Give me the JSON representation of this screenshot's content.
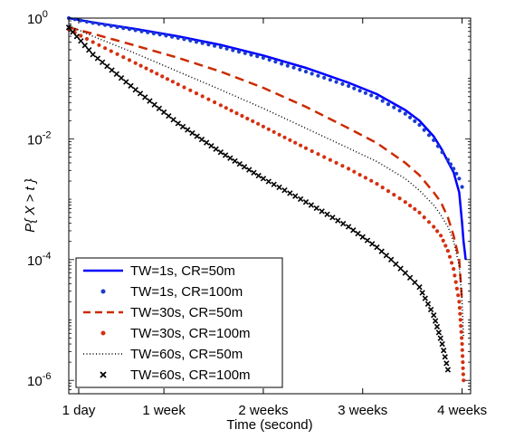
{
  "chart_data": {
    "type": "line",
    "title": "",
    "xlabel": "Time (second)",
    "ylabel": "P{ X > t }",
    "x_scale": "linear",
    "y_scale": "log",
    "x_tick_labels": [
      "1 day",
      "1 week",
      "2 weeks",
      "3 weeks",
      "4 weeks"
    ],
    "x_tick_values_days": [
      1,
      7,
      14,
      21,
      28
    ],
    "xlim_days": [
      0.3,
      28.6
    ],
    "y_tick_labels": [
      {
        "base": "10",
        "exp": "0",
        "value": 1
      },
      {
        "base": "10",
        "exp": "-2",
        "value": 0.01
      },
      {
        "base": "10",
        "exp": "-4",
        "value": 0.0001
      },
      {
        "base": "10",
        "exp": "-6",
        "value": 1e-06
      }
    ],
    "ylim": [
      6e-07,
      1
    ],
    "grid": false,
    "legend_position": "bottom-left",
    "series": [
      {
        "name": "TW=1s, CR=50m",
        "color": "#0000ff",
        "style": "solid",
        "x_days": [
          0.3,
          2,
          5,
          8,
          11,
          14,
          17,
          20,
          22,
          24,
          25,
          26,
          26.6,
          27,
          27.4,
          27.8,
          28.0,
          28.1,
          28.2,
          28.25
        ],
        "y": [
          1.0,
          0.85,
          0.66,
          0.5,
          0.36,
          0.24,
          0.15,
          0.085,
          0.055,
          0.03,
          0.02,
          0.011,
          0.0065,
          0.0042,
          0.0028,
          0.0013,
          0.0004,
          0.0002,
          0.00013,
          0.0001
        ]
      },
      {
        "name": "TW=1s, CR=100m",
        "color": "#1a3ccc",
        "style": "dots",
        "x_days": [
          0.3,
          2,
          5,
          8,
          11,
          14,
          17,
          20,
          22,
          24,
          25,
          26,
          26.6,
          27,
          27.4,
          27.8,
          28.0
        ],
        "y": [
          1.0,
          0.83,
          0.63,
          0.47,
          0.33,
          0.22,
          0.13,
          0.075,
          0.048,
          0.026,
          0.017,
          0.0095,
          0.006,
          0.0045,
          0.0032,
          0.0022,
          0.0016
        ]
      },
      {
        "name": "TW=30s, CR=50m",
        "color": "#cc2a00",
        "style": "dashed",
        "x_days": [
          0.3,
          2,
          5,
          8,
          11,
          14,
          17,
          20,
          22,
          24,
          25,
          26,
          26.5,
          27,
          27.4,
          27.8,
          28.0
        ],
        "y": [
          0.7,
          0.55,
          0.35,
          0.22,
          0.13,
          0.07,
          0.034,
          0.015,
          0.0085,
          0.004,
          0.0025,
          0.0013,
          0.0009,
          0.0005,
          0.00025,
          0.0001,
          2e-05
        ]
      },
      {
        "name": "TW=30s, CR=100m",
        "color": "#d53010",
        "style": "dots",
        "x_days": [
          0.3,
          2,
          5,
          8,
          11,
          14,
          17,
          20,
          22,
          24,
          25,
          26,
          26.5,
          27,
          27.4,
          27.8,
          28.0,
          28.1
        ],
        "y": [
          0.65,
          0.4,
          0.18,
          0.08,
          0.036,
          0.016,
          0.007,
          0.0032,
          0.0018,
          0.0009,
          0.0006,
          0.00035,
          0.00025,
          0.00014,
          7e-05,
          2e-05,
          4e-06,
          1e-06
        ]
      },
      {
        "name": "TW=60s, CR=50m",
        "color": "#000000",
        "style": "dotted",
        "x_days": [
          0.3,
          2,
          5,
          8,
          11,
          14,
          17,
          20,
          22,
          24,
          25,
          26,
          26.5,
          27,
          27.4,
          27.8,
          28.0,
          28.1
        ],
        "y": [
          0.75,
          0.5,
          0.26,
          0.13,
          0.065,
          0.032,
          0.015,
          0.007,
          0.0042,
          0.0022,
          0.0014,
          0.0008,
          0.00055,
          0.00035,
          0.0002,
          8e-05,
          2e-05,
          5e-06
        ]
      },
      {
        "name": "TW=60s, CR=100m",
        "color": "#000000",
        "style": "x",
        "x_days": [
          0.3,
          2,
          5,
          8,
          11,
          14,
          17,
          20,
          22,
          23,
          24,
          25,
          26,
          26.6,
          27
        ],
        "y": [
          0.7,
          0.25,
          0.065,
          0.018,
          0.006,
          0.0022,
          0.0009,
          0.00035,
          0.00016,
          0.0001,
          6e-05,
          3.5e-05,
          1.2e-05,
          4e-06,
          1.5e-06
        ]
      }
    ]
  }
}
